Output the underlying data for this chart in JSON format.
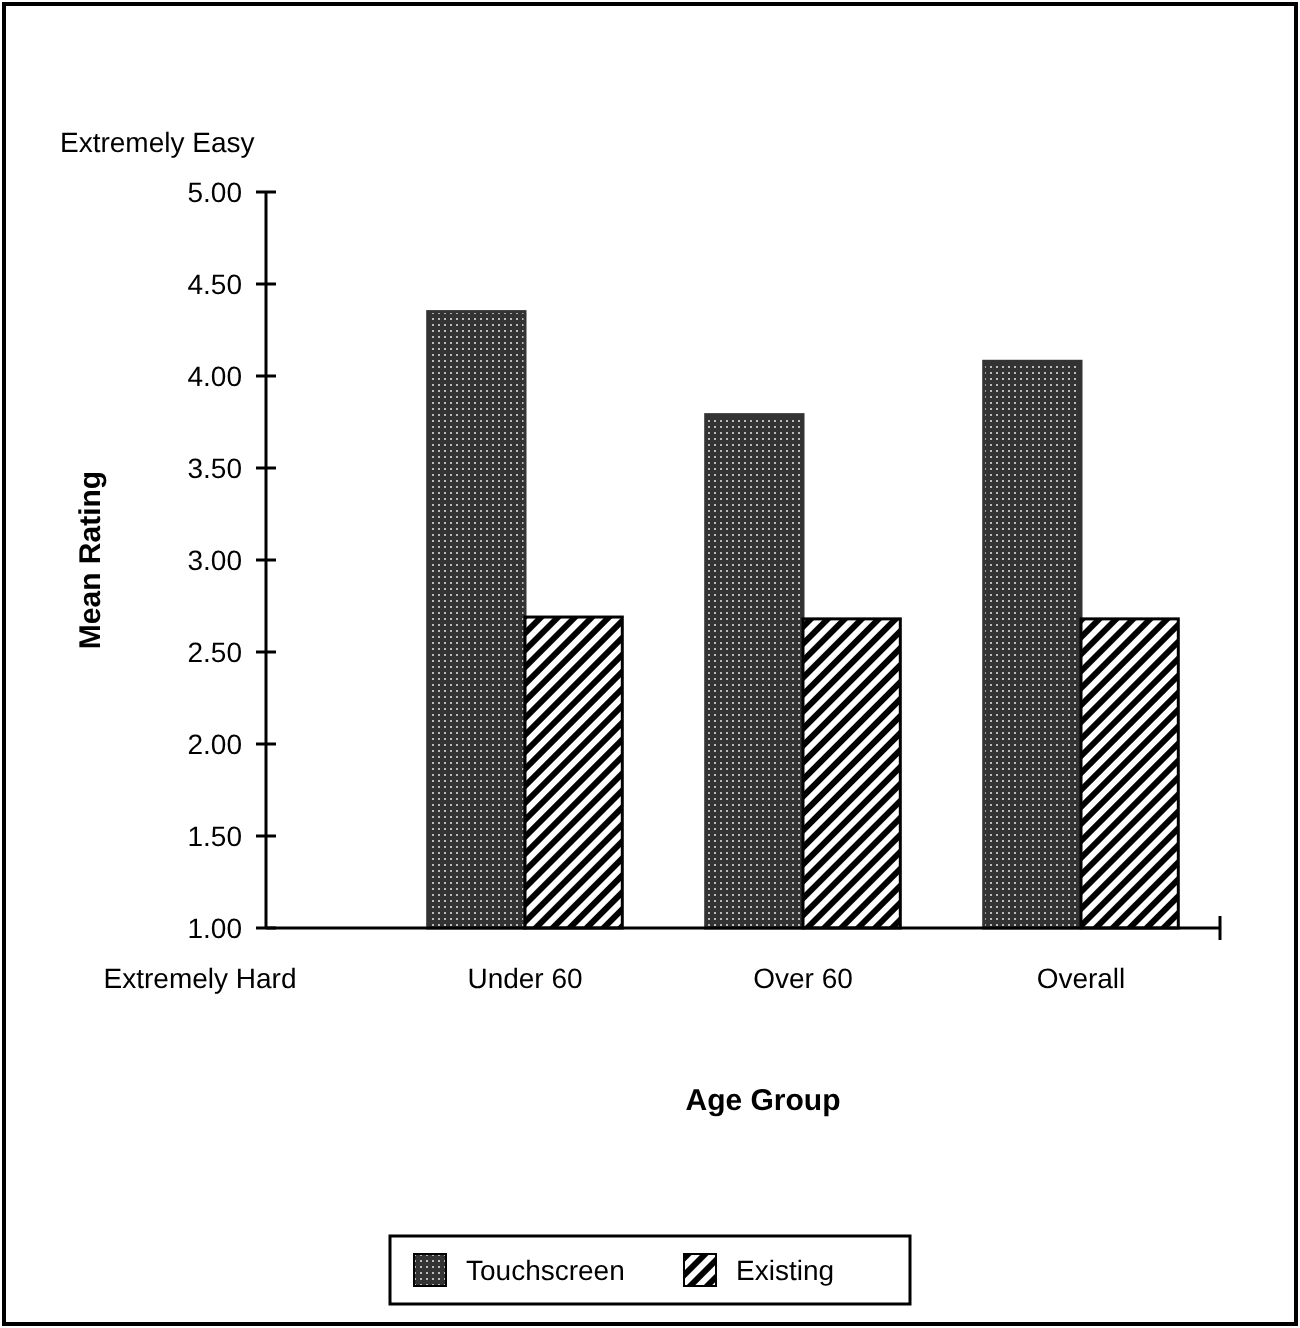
{
  "chart_data": {
    "type": "bar",
    "xlabel": "Age Group",
    "ylabel": "Mean Rating",
    "annotations": [
      "Extremely Easy",
      "Extremely Hard"
    ],
    "categories": [
      "Under 60",
      "Over 60",
      "Overall"
    ],
    "series": [
      {
        "name": "Touchscreen",
        "color": "#333333",
        "values": [
          4.35,
          3.79,
          4.08
        ]
      },
      {
        "name": "Existing",
        "color": "#000000",
        "values": [
          2.69,
          2.68,
          2.68
        ]
      }
    ],
    "ylim": [
      1,
      5
    ],
    "yticks": [
      {
        "value": 1,
        "label": "1.00"
      },
      {
        "value": 1.5,
        "label": "1.50"
      },
      {
        "value": 2,
        "label": "2.00"
      },
      {
        "value": 2.5,
        "label": "2.50"
      },
      {
        "value": 3,
        "label": "3.00"
      },
      {
        "value": 3.5,
        "label": "3.50"
      },
      {
        "value": 4,
        "label": "4.00"
      },
      {
        "value": 4.5,
        "label": "4.50"
      },
      {
        "value": 5,
        "label": "5.00"
      }
    ],
    "grid": false,
    "legend": "bottom"
  }
}
